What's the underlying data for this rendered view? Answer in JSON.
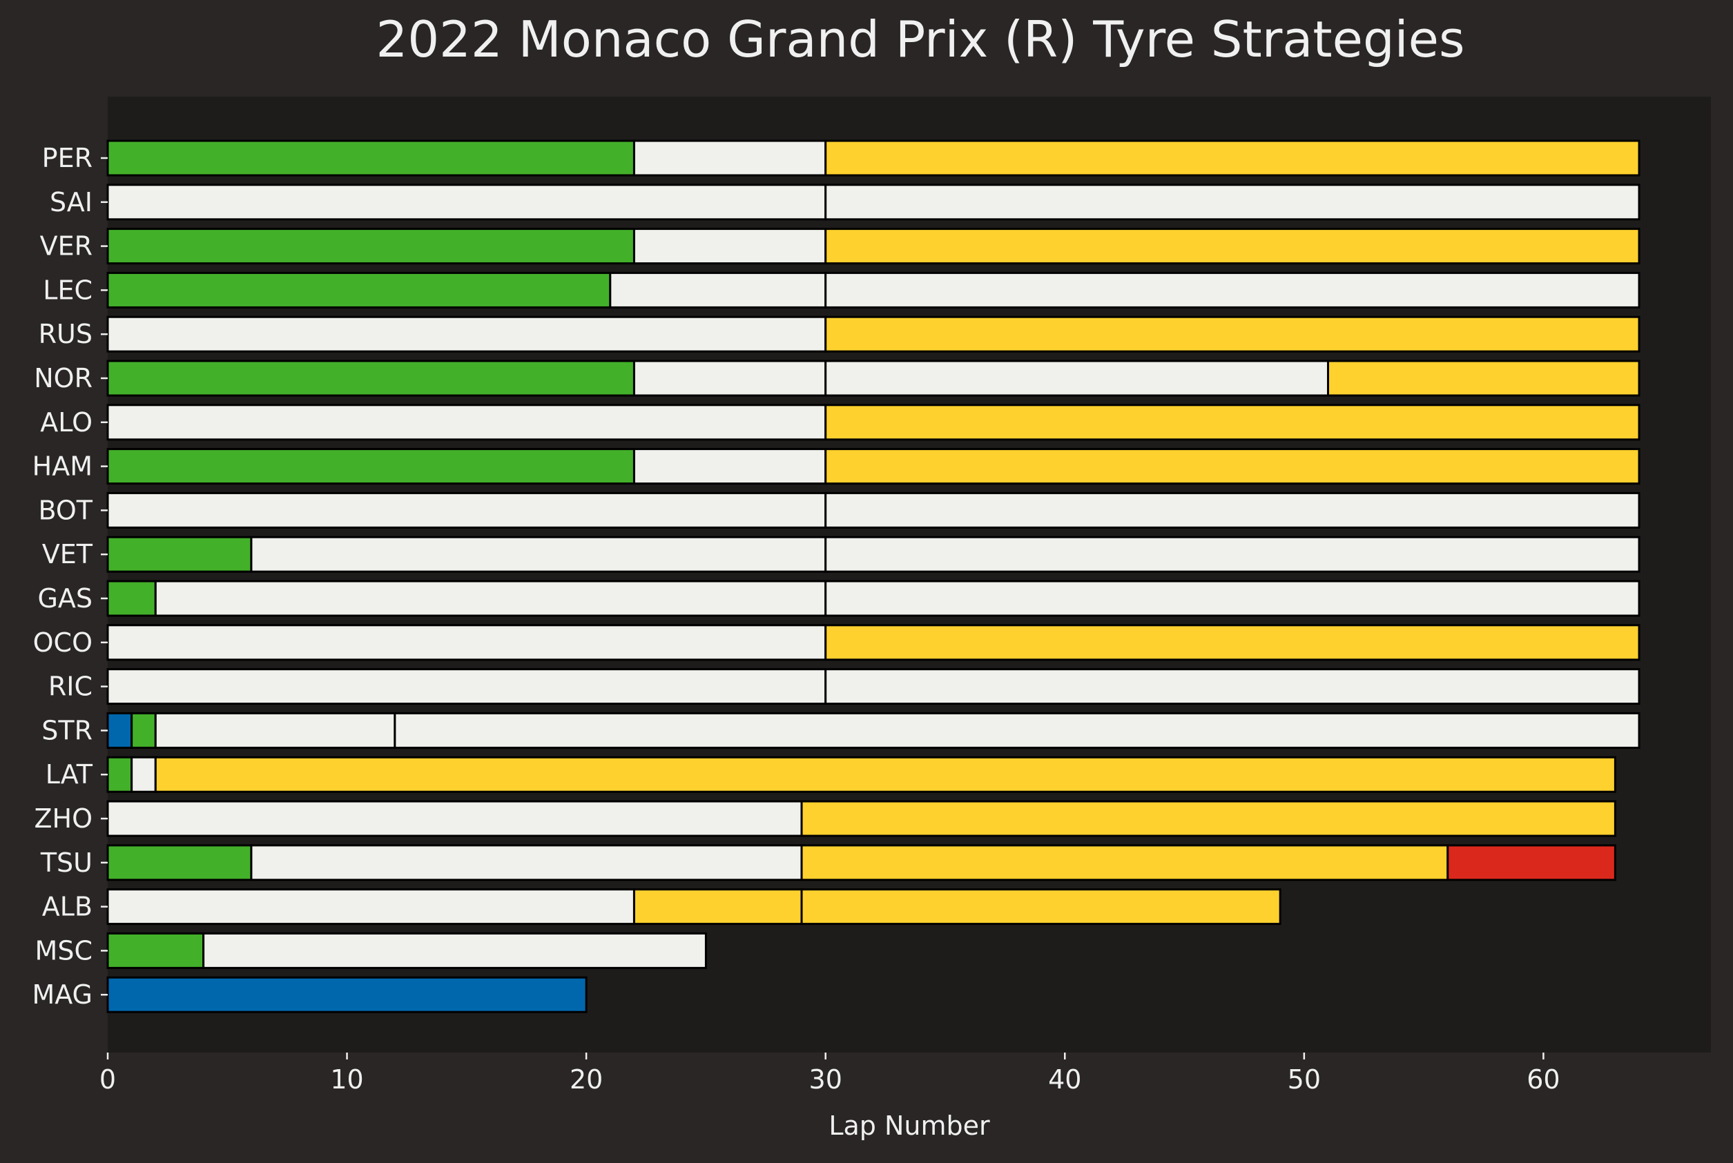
{
  "chart_data": {
    "type": "bar",
    "orientation": "horizontal",
    "stacked": true,
    "title": "2022 Monaco Grand Prix (R) Tyre Strategies",
    "xlabel": "Lap Number",
    "ylabel": "",
    "xlim": [
      0,
      67
    ],
    "xticks": [
      0,
      10,
      20,
      30,
      40,
      50,
      60
    ],
    "grid": false,
    "legend": "none",
    "colors": {
      "background": "#292625",
      "plot_background": "#1e1c1b",
      "text": "#f0f0f0",
      "bar_edge": "#000000",
      "INTERMEDIATE": "#43b02a",
      "WET": "#0067ad",
      "HARD": "#f0f0ec",
      "MEDIUM": "#ffd12e",
      "SOFT": "#da291c"
    },
    "categories": [
      "PER",
      "SAI",
      "VER",
      "LEC",
      "RUS",
      "NOR",
      "ALO",
      "HAM",
      "BOT",
      "VET",
      "GAS",
      "OCO",
      "RIC",
      "STR",
      "LAT",
      "ZHO",
      "TSU",
      "ALB",
      "MSC",
      "MAG"
    ],
    "drivers": [
      {
        "name": "PER",
        "stints": [
          {
            "compound": "INTERMEDIATE",
            "start": 0,
            "end": 22
          },
          {
            "compound": "HARD",
            "start": 22,
            "end": 30
          },
          {
            "compound": "MEDIUM",
            "start": 30,
            "end": 64
          }
        ]
      },
      {
        "name": "SAI",
        "stints": [
          {
            "compound": "HARD",
            "start": 0,
            "end": 30
          },
          {
            "compound": "HARD",
            "start": 30,
            "end": 64
          }
        ]
      },
      {
        "name": "VER",
        "stints": [
          {
            "compound": "INTERMEDIATE",
            "start": 0,
            "end": 22
          },
          {
            "compound": "HARD",
            "start": 22,
            "end": 30
          },
          {
            "compound": "MEDIUM",
            "start": 30,
            "end": 64
          }
        ]
      },
      {
        "name": "LEC",
        "stints": [
          {
            "compound": "INTERMEDIATE",
            "start": 0,
            "end": 21
          },
          {
            "compound": "HARD",
            "start": 21,
            "end": 30
          },
          {
            "compound": "HARD",
            "start": 30,
            "end": 64
          }
        ]
      },
      {
        "name": "RUS",
        "stints": [
          {
            "compound": "HARD",
            "start": 0,
            "end": 30
          },
          {
            "compound": "MEDIUM",
            "start": 30,
            "end": 64
          }
        ]
      },
      {
        "name": "NOR",
        "stints": [
          {
            "compound": "INTERMEDIATE",
            "start": 0,
            "end": 22
          },
          {
            "compound": "HARD",
            "start": 22,
            "end": 30
          },
          {
            "compound": "HARD",
            "start": 30,
            "end": 51
          },
          {
            "compound": "MEDIUM",
            "start": 51,
            "end": 64
          }
        ]
      },
      {
        "name": "ALO",
        "stints": [
          {
            "compound": "HARD",
            "start": 0,
            "end": 30
          },
          {
            "compound": "MEDIUM",
            "start": 30,
            "end": 64
          }
        ]
      },
      {
        "name": "HAM",
        "stints": [
          {
            "compound": "INTERMEDIATE",
            "start": 0,
            "end": 22
          },
          {
            "compound": "HARD",
            "start": 22,
            "end": 30
          },
          {
            "compound": "MEDIUM",
            "start": 30,
            "end": 64
          }
        ]
      },
      {
        "name": "BOT",
        "stints": [
          {
            "compound": "HARD",
            "start": 0,
            "end": 30
          },
          {
            "compound": "HARD",
            "start": 30,
            "end": 64
          }
        ]
      },
      {
        "name": "VET",
        "stints": [
          {
            "compound": "INTERMEDIATE",
            "start": 0,
            "end": 6
          },
          {
            "compound": "HARD",
            "start": 6,
            "end": 30
          },
          {
            "compound": "HARD",
            "start": 30,
            "end": 64
          }
        ]
      },
      {
        "name": "GAS",
        "stints": [
          {
            "compound": "INTERMEDIATE",
            "start": 0,
            "end": 2
          },
          {
            "compound": "HARD",
            "start": 2,
            "end": 30
          },
          {
            "compound": "HARD",
            "start": 30,
            "end": 64
          }
        ]
      },
      {
        "name": "OCO",
        "stints": [
          {
            "compound": "HARD",
            "start": 0,
            "end": 30
          },
          {
            "compound": "MEDIUM",
            "start": 30,
            "end": 64
          }
        ]
      },
      {
        "name": "RIC",
        "stints": [
          {
            "compound": "HARD",
            "start": 0,
            "end": 30
          },
          {
            "compound": "HARD",
            "start": 30,
            "end": 64
          }
        ]
      },
      {
        "name": "STR",
        "stints": [
          {
            "compound": "WET",
            "start": 0,
            "end": 1
          },
          {
            "compound": "INTERMEDIATE",
            "start": 1,
            "end": 2
          },
          {
            "compound": "HARD",
            "start": 2,
            "end": 12
          },
          {
            "compound": "HARD",
            "start": 12,
            "end": 64
          }
        ]
      },
      {
        "name": "LAT",
        "stints": [
          {
            "compound": "INTERMEDIATE",
            "start": 0,
            "end": 1
          },
          {
            "compound": "HARD",
            "start": 1,
            "end": 2
          },
          {
            "compound": "MEDIUM",
            "start": 2,
            "end": 63
          }
        ]
      },
      {
        "name": "ZHO",
        "stints": [
          {
            "compound": "HARD",
            "start": 0,
            "end": 29
          },
          {
            "compound": "MEDIUM",
            "start": 29,
            "end": 63
          }
        ]
      },
      {
        "name": "TSU",
        "stints": [
          {
            "compound": "INTERMEDIATE",
            "start": 0,
            "end": 6
          },
          {
            "compound": "HARD",
            "start": 6,
            "end": 29
          },
          {
            "compound": "MEDIUM",
            "start": 29,
            "end": 56
          },
          {
            "compound": "SOFT",
            "start": 56,
            "end": 63
          }
        ]
      },
      {
        "name": "ALB",
        "stints": [
          {
            "compound": "HARD",
            "start": 0,
            "end": 22
          },
          {
            "compound": "MEDIUM",
            "start": 22,
            "end": 29
          },
          {
            "compound": "MEDIUM",
            "start": 29,
            "end": 49
          }
        ]
      },
      {
        "name": "MSC",
        "stints": [
          {
            "compound": "INTERMEDIATE",
            "start": 0,
            "end": 4
          },
          {
            "compound": "HARD",
            "start": 4,
            "end": 25
          }
        ]
      },
      {
        "name": "MAG",
        "stints": [
          {
            "compound": "WET",
            "start": 0,
            "end": 20
          }
        ]
      }
    ]
  }
}
